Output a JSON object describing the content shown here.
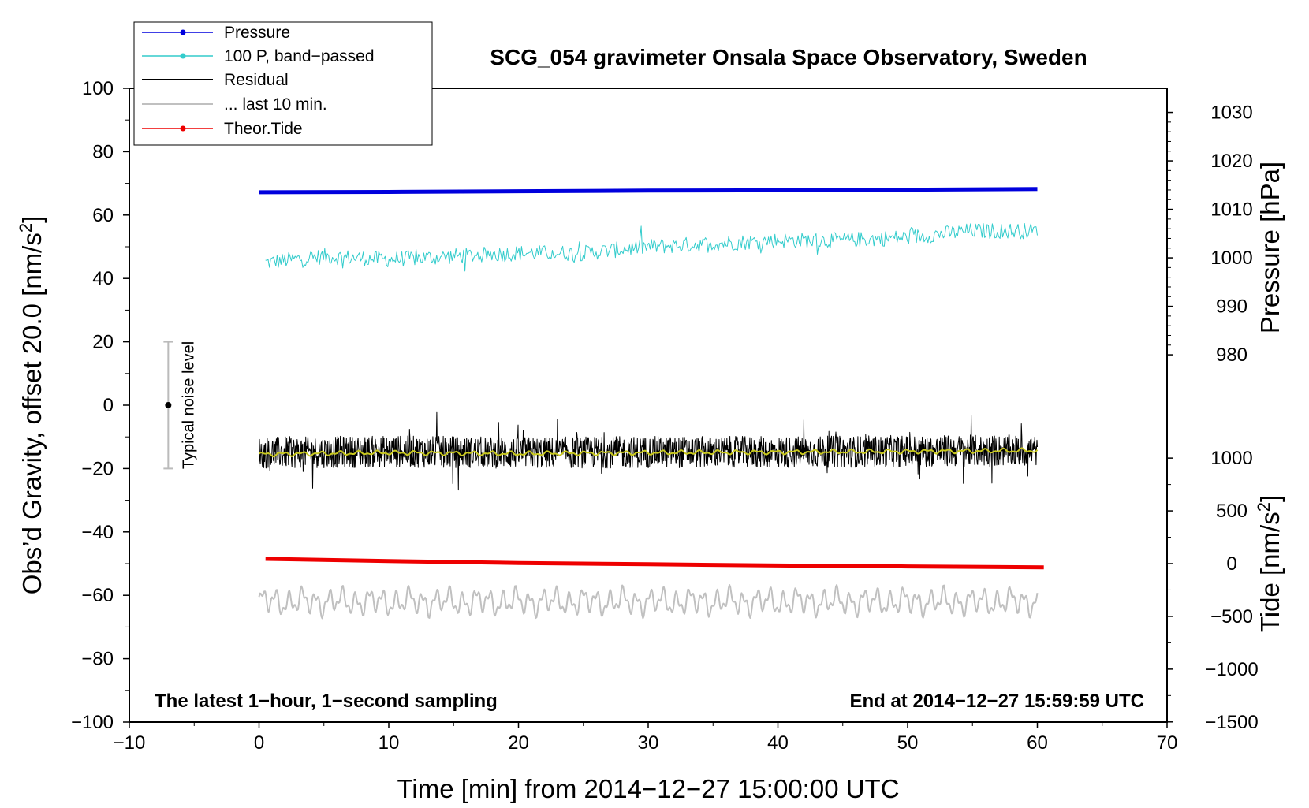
{
  "chart_data": {
    "type": "line",
    "title": "SCG_054 gravimeter Onsala Space Observatory, Sweden",
    "xlabel": "Time [min] from 2014−12−27 15:00:00 UTC",
    "ylabel_left": "Obs’d Gravity, offset 20.0 [nm/s",
    "ylabel_left_sup": "2",
    "ylabel_left_end": "]",
    "ylabel_right_pressure": "Pressure [hPa]",
    "ylabel_right_tide": "Tide [nm/s",
    "ylabel_right_tide_sup": "2",
    "ylabel_right_tide_end": "]",
    "xlim": [
      -10,
      70
    ],
    "ylim": [
      -100,
      100
    ],
    "x_ticks": [
      -10,
      0,
      10,
      20,
      30,
      40,
      50,
      60,
      70
    ],
    "x_tick_labels": [
      "−10",
      "0",
      "10",
      "20",
      "30",
      "40",
      "50",
      "60",
      "70"
    ],
    "y_ticks": [
      -100,
      -80,
      -60,
      -40,
      -20,
      0,
      20,
      40,
      60,
      80,
      100
    ],
    "y_tick_labels": [
      "−100",
      "−80",
      "−60",
      "−40",
      "−20",
      "0",
      "20",
      "40",
      "60",
      "80",
      "100"
    ],
    "pressure_axis": {
      "ticks": [
        980,
        990,
        1000,
        1010,
        1020,
        1030
      ],
      "tick_labels": [
        "980",
        "990",
        "1000",
        "1010",
        "1020",
        "1030"
      ],
      "map": {
        "value_a": 1000,
        "gravity_a": 46.5,
        "value_b": 1010,
        "gravity_b": 61.8
      }
    },
    "tide_axis": {
      "ticks": [
        -1500,
        -1000,
        -500,
        0,
        500,
        1000
      ],
      "tick_labels": [
        "−1500",
        "−1000",
        "−500",
        "0",
        "500",
        "1000"
      ],
      "map": {
        "value_a": 0,
        "gravity_a": -50,
        "value_b": 1000,
        "gravity_b": -16.7
      }
    },
    "series": [
      {
        "name": "Pressure",
        "color": "#0000dd",
        "style": "thick",
        "x": [
          0,
          10,
          20,
          30,
          40,
          50,
          60
        ],
        "y": [
          67.2,
          67.3,
          67.5,
          67.7,
          67.8,
          68.0,
          68.2
        ]
      },
      {
        "name": "100 P, band−passed",
        "color": "#33cccc",
        "style": "noisy",
        "x": [
          0.5,
          5,
          10,
          15,
          20,
          25,
          30,
          35,
          40,
          45,
          50,
          55,
          60
        ],
        "y": [
          45,
          47,
          46,
          47,
          48,
          48,
          50,
          51,
          52,
          52,
          53,
          55,
          55
        ],
        "amplitude": 2.5
      },
      {
        "name": "Residual",
        "color": "#000000",
        "style": "noisy",
        "x": [
          0,
          10,
          20,
          30,
          40,
          50,
          60
        ],
        "y": [
          -15,
          -14.6,
          -15,
          -14.8,
          -14.8,
          -14.5,
          -14.3
        ],
        "amplitude": 5
      },
      {
        "name": "... last 10 min.",
        "color": "#c0c0c0",
        "style": "oscillating",
        "x": [
          0,
          60
        ],
        "y": [
          -62,
          -62
        ],
        "amplitude": 4
      },
      {
        "name": "Theor.Tide",
        "color": "#ee0000",
        "style": "thick",
        "x": [
          0.5,
          10,
          20,
          30,
          40,
          50,
          60.5
        ],
        "y": [
          -48.5,
          -49.2,
          -49.8,
          -50.2,
          -50.6,
          -50.9,
          -51.2
        ]
      },
      {
        "name": "",
        "color": "#c8c81e",
        "style": "smooth",
        "x": [
          0,
          10,
          20,
          30,
          40,
          50,
          60
        ],
        "y": [
          -15.5,
          -15,
          -15.3,
          -15,
          -14.8,
          -14.6,
          -14.3
        ],
        "amplitude": 0.8
      }
    ],
    "noise_bar": {
      "x": -7,
      "y": 0,
      "low": -20,
      "high": 20,
      "label": "Typical noise level"
    },
    "note_left": "The latest 1−hour, 1−second sampling",
    "note_right": "End at 2014−12−27 15:59:59 UTC",
    "legend_position": "top-left"
  }
}
